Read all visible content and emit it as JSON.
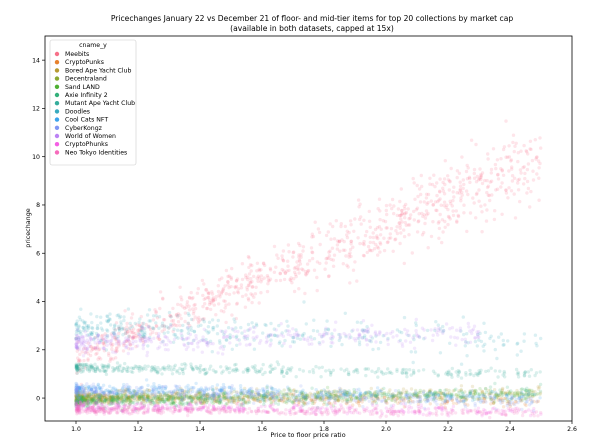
{
  "chart_data": {
    "type": "scatter",
    "title": "Pricechanges January 22 vs December 21 of floor- and mid-tier items for top 20 collections by market cap",
    "subtitle": "(available in both datasets, capped at 15x)",
    "xlabel": "Price to floor price ratio",
    "ylabel": "pricechange",
    "xlim": [
      0.9,
      2.6
    ],
    "ylim": [
      -0.95,
      15
    ],
    "xticks": [
      "1.0",
      "1.2",
      "1.4",
      "1.6",
      "1.8",
      "2.0",
      "2.2",
      "2.4",
      "2.6"
    ],
    "yticks": [
      "0",
      "2",
      "4",
      "6",
      "8",
      "10",
      "12",
      "14"
    ],
    "grid": false,
    "legend_position": "top-left",
    "legend_title": "cname_y",
    "series": [
      {
        "name": "Meebits",
        "color": "#f77189",
        "x_range": [
          1.0,
          2.5
        ],
        "y_at_x_start": 1.6,
        "y_at_x_end": 9.9,
        "spread": 1.6
      },
      {
        "name": "CryptoPunks",
        "color": "#e7812d",
        "x_range": [
          1.0,
          2.5
        ],
        "y_at_x_start": 0.0,
        "y_at_x_end": -0.15,
        "spread": 0.2
      },
      {
        "name": "Bored Ape Yacht Club",
        "color": "#b79a32",
        "x_range": [
          1.0,
          2.5
        ],
        "y_at_x_start": 0.1,
        "y_at_x_end": 0.2,
        "spread": 0.25
      },
      {
        "name": "Decentraland",
        "color": "#8ba932",
        "x_range": [
          1.0,
          2.5
        ],
        "y_at_x_start": -0.1,
        "y_at_x_end": 0.1,
        "spread": 0.25
      },
      {
        "name": "Sand LAND",
        "color": "#4fb032",
        "x_range": [
          1.0,
          2.5
        ],
        "y_at_x_start": -0.05,
        "y_at_x_end": 0.2,
        "spread": 0.25
      },
      {
        "name": "Axie Infinity 2",
        "color": "#33b07a",
        "x_range": [
          1.0,
          2.5
        ],
        "y_at_x_start": -0.15,
        "y_at_x_end": 0.25,
        "spread": 0.3
      },
      {
        "name": "Mutant Ape Yacht Club",
        "color": "#35ad9c",
        "x_range": [
          1.0,
          2.5
        ],
        "y_at_x_start": 1.25,
        "y_at_x_end": 1.0,
        "spread": 0.2
      },
      {
        "name": "Doodles",
        "color": "#38aabf",
        "x_range": [
          1.0,
          2.5
        ],
        "y_at_x_start": 2.9,
        "y_at_x_end": 2.4,
        "spread": 0.7
      },
      {
        "name": "Cool Cats NFT",
        "color": "#3ba3ec",
        "x_range": [
          1.0,
          2.5
        ],
        "y_at_x_start": 0.4,
        "y_at_x_end": 0.0,
        "spread": 0.25
      },
      {
        "name": "CyberKongz",
        "color": "#8197f4",
        "x_range": [
          1.0,
          2.5
        ],
        "y_at_x_start": 0.3,
        "y_at_x_end": -0.2,
        "spread": 0.3
      },
      {
        "name": "World of Women",
        "color": "#bb83f4",
        "x_range": [
          1.0,
          2.3
        ],
        "y_at_x_start": 2.3,
        "y_at_x_end": 2.7,
        "spread": 0.45
      },
      {
        "name": "CryptoPhunks",
        "color": "#f45fe4",
        "x_range": [
          1.0,
          2.5
        ],
        "y_at_x_start": -0.35,
        "y_at_x_end": -0.55,
        "spread": 0.2
      },
      {
        "name": "Neo Tokyo Identities",
        "color": "#f66bbc",
        "x_range": [
          1.0,
          2.5
        ],
        "y_at_x_start": -0.5,
        "y_at_x_end": -0.6,
        "spread": 0.15
      }
    ]
  }
}
